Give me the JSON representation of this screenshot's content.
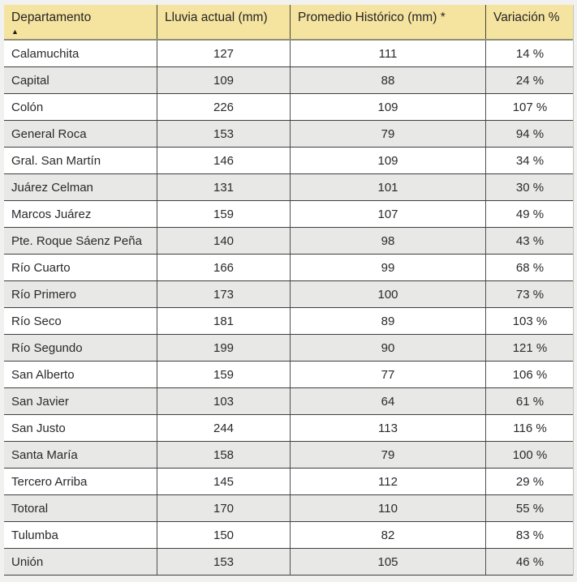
{
  "chart_data": {
    "type": "table",
    "title": "",
    "columns": [
      "Departamento",
      "Lluvia actual (mm)",
      "Promedio Histórico (mm) *",
      "Variación %"
    ],
    "sort": {
      "column": "Departamento",
      "direction": "ascending",
      "icon": "▲"
    },
    "rows": [
      {
        "departamento": "Calamuchita",
        "lluvia_actual_mm": "127",
        "promedio_historico_mm": "111",
        "variacion": "14 %"
      },
      {
        "departamento": "Capital",
        "lluvia_actual_mm": "109",
        "promedio_historico_mm": "88",
        "variacion": "24 %"
      },
      {
        "departamento": "Colón",
        "lluvia_actual_mm": "226",
        "promedio_historico_mm": "109",
        "variacion": "107 %"
      },
      {
        "departamento": "General Roca",
        "lluvia_actual_mm": "153",
        "promedio_historico_mm": "79",
        "variacion": "94 %"
      },
      {
        "departamento": "Gral. San Martín",
        "lluvia_actual_mm": "146",
        "promedio_historico_mm": "109",
        "variacion": "34 %"
      },
      {
        "departamento": "Juárez Celman",
        "lluvia_actual_mm": "131",
        "promedio_historico_mm": "101",
        "variacion": "30 %"
      },
      {
        "departamento": "Marcos Juárez",
        "lluvia_actual_mm": "159",
        "promedio_historico_mm": "107",
        "variacion": "49 %"
      },
      {
        "departamento": "Pte. Roque Sáenz Peña",
        "lluvia_actual_mm": "140",
        "promedio_historico_mm": "98",
        "variacion": "43 %"
      },
      {
        "departamento": "Río Cuarto",
        "lluvia_actual_mm": "166",
        "promedio_historico_mm": "99",
        "variacion": "68 %"
      },
      {
        "departamento": "Río Primero",
        "lluvia_actual_mm": "173",
        "promedio_historico_mm": "100",
        "variacion": "73 %"
      },
      {
        "departamento": "Río Seco",
        "lluvia_actual_mm": "181",
        "promedio_historico_mm": "89",
        "variacion": "103 %"
      },
      {
        "departamento": "Río Segundo",
        "lluvia_actual_mm": "199",
        "promedio_historico_mm": "90",
        "variacion": "121 %"
      },
      {
        "departamento": "San Alberto",
        "lluvia_actual_mm": "159",
        "promedio_historico_mm": "77",
        "variacion": "106 %"
      },
      {
        "departamento": "San Javier",
        "lluvia_actual_mm": "103",
        "promedio_historico_mm": "64",
        "variacion": "61 %"
      },
      {
        "departamento": "San Justo",
        "lluvia_actual_mm": "244",
        "promedio_historico_mm": "113",
        "variacion": "116 %"
      },
      {
        "departamento": "Santa María",
        "lluvia_actual_mm": "158",
        "promedio_historico_mm": "79",
        "variacion": "100 %"
      },
      {
        "departamento": "Tercero Arriba",
        "lluvia_actual_mm": "145",
        "promedio_historico_mm": "112",
        "variacion": "29 %"
      },
      {
        "departamento": "Totoral",
        "lluvia_actual_mm": "170",
        "promedio_historico_mm": "110",
        "variacion": "55 %"
      },
      {
        "departamento": "Tulumba",
        "lluvia_actual_mm": "150",
        "promedio_historico_mm": "82",
        "variacion": "83 %"
      },
      {
        "departamento": "Unión",
        "lluvia_actual_mm": "153",
        "promedio_historico_mm": "105",
        "variacion": "46 %"
      }
    ]
  },
  "colors": {
    "page_background": "#F1F1F0",
    "header_background": "#F5E4A0",
    "header_bottom_border": "#8E8E7A",
    "row_background": "#FFFFFF",
    "row_alternate_background": "#E8E8E7",
    "horizontal_gridline": "#3F3F3F",
    "vertical_gridline": "#515151",
    "text": "#2A2A2A"
  }
}
